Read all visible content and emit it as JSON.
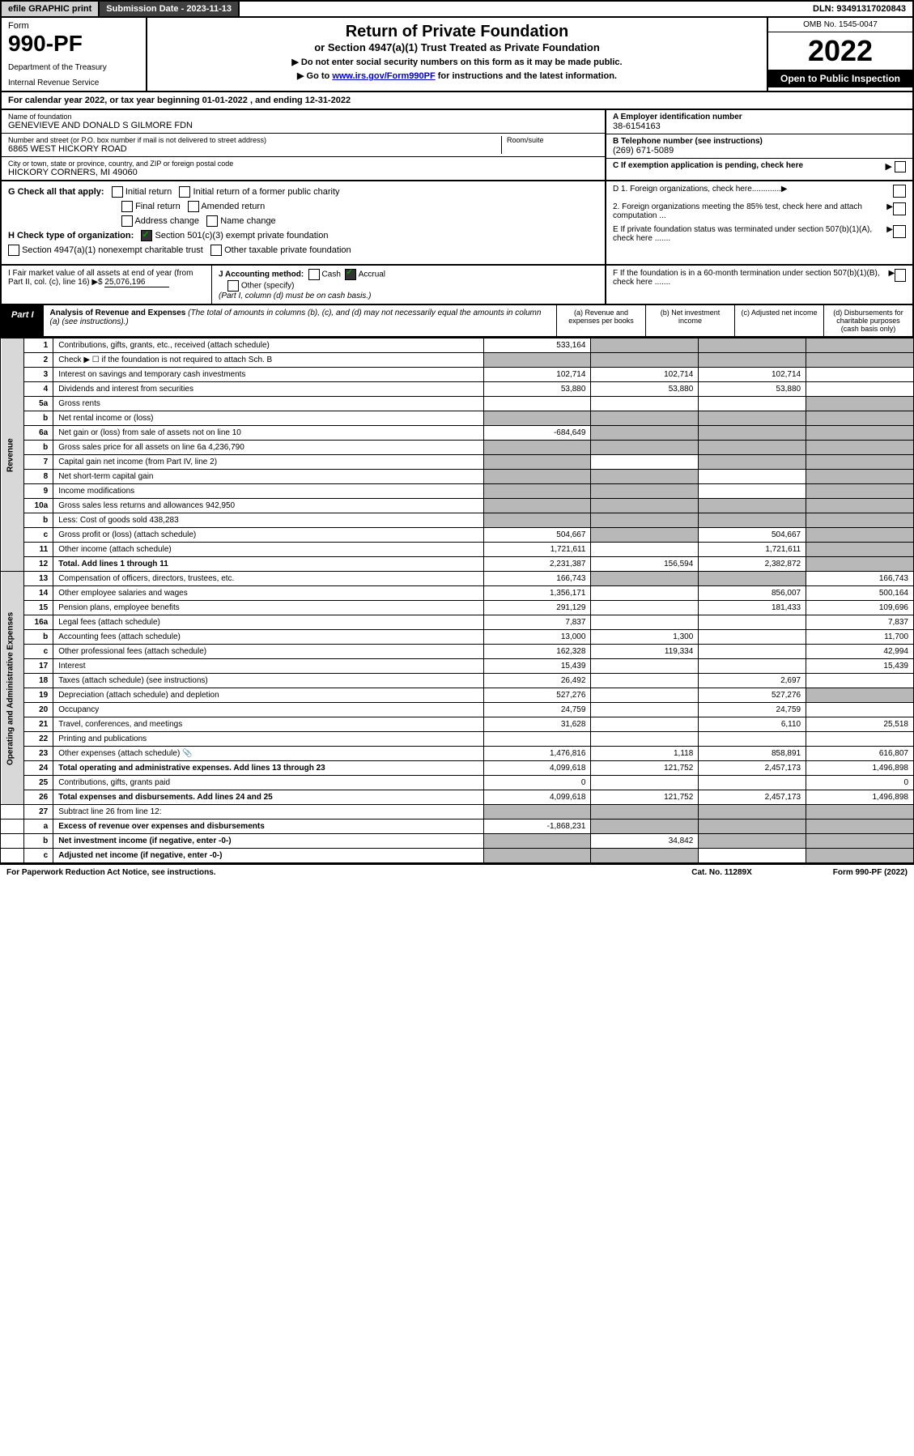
{
  "topbar": {
    "efile": "efile GRAPHIC print",
    "sub_label": "Submission Date - 2023-11-13",
    "dln": "DLN: 93491317020843"
  },
  "header": {
    "form_label": "Form",
    "form_number": "990-PF",
    "dept": "Department of the Treasury",
    "irs": "Internal Revenue Service",
    "title": "Return of Private Foundation",
    "subtitle": "or Section 4947(a)(1) Trust Treated as Private Foundation",
    "instr1": "▶ Do not enter social security numbers on this form as it may be made public.",
    "instr2_pre": "▶ Go to ",
    "instr2_link": "www.irs.gov/Form990PF",
    "instr2_post": " for instructions and the latest information.",
    "omb": "OMB No. 1545-0047",
    "year": "2022",
    "open": "Open to Public Inspection"
  },
  "calyear": "For calendar year 2022, or tax year beginning 01-01-2022           , and ending 12-31-2022",
  "name_block": {
    "name_label": "Name of foundation",
    "name": "GENEVIEVE AND DONALD S GILMORE FDN",
    "street_label": "Number and street (or P.O. box number if mail is not delivered to street address)",
    "room_label": "Room/suite",
    "street": "6865 WEST HICKORY ROAD",
    "city_label": "City or town, state or province, country, and ZIP or foreign postal code",
    "city": "HICKORY CORNERS, MI  49060",
    "ein_label": "A Employer identification number",
    "ein": "38-6154163",
    "phone_label": "B Telephone number (see instructions)",
    "phone": "(269) 671-5089",
    "c_label": "C If exemption application is pending, check here"
  },
  "checks": {
    "g_label": "G Check all that apply:",
    "g_opts": [
      "Initial return",
      "Initial return of a former public charity",
      "Final return",
      "Amended return",
      "Address change",
      "Name change"
    ],
    "h_label": "H Check type of organization:",
    "h_501c3": "Section 501(c)(3) exempt private foundation",
    "h_4947": "Section 4947(a)(1) nonexempt charitable trust",
    "h_other": "Other taxable private foundation",
    "d1": "D 1. Foreign organizations, check here.............",
    "d2": "2. Foreign organizations meeting the 85% test, check here and attach computation ...",
    "e": "E  If private foundation status was terminated under section 507(b)(1)(A), check here .......",
    "f": "F  If the foundation is in a 60-month termination under section 507(b)(1)(B), check here ......."
  },
  "hij": {
    "i_label": "I Fair market value of all assets at end of year (from Part II, col. (c), line 16) ▶$",
    "i_val": "25,076,196",
    "j_label": "J Accounting method:",
    "j_cash": "Cash",
    "j_accrual": "Accrual",
    "j_other": "Other (specify)",
    "j_note": "(Part I, column (d) must be on cash basis.)"
  },
  "part1": {
    "label": "Part I",
    "title": "Analysis of Revenue and Expenses",
    "note": "(The total of amounts in columns (b), (c), and (d) may not necessarily equal the amounts in column (a) (see instructions).)",
    "col_a": "(a)  Revenue and expenses per books",
    "col_b": "(b)  Net investment income",
    "col_c": "(c)  Adjusted net income",
    "col_d": "(d)  Disbursements for charitable purposes (cash basis only)"
  },
  "side_labels": {
    "rev": "Revenue",
    "ops": "Operating and Administrative Expenses"
  },
  "rows": {
    "r1": {
      "ln": "1",
      "desc": "Contributions, gifts, grants, etc., received (attach schedule)",
      "a": "533,164"
    },
    "r2": {
      "ln": "2",
      "desc": "Check ▶ ☐ if the foundation is not required to attach Sch. B"
    },
    "r3": {
      "ln": "3",
      "desc": "Interest on savings and temporary cash investments",
      "a": "102,714",
      "b": "102,714",
      "c": "102,714"
    },
    "r4": {
      "ln": "4",
      "desc": "Dividends and interest from securities",
      "a": "53,880",
      "b": "53,880",
      "c": "53,880"
    },
    "r5a": {
      "ln": "5a",
      "desc": "Gross rents"
    },
    "r5b": {
      "ln": "b",
      "desc": "Net rental income or (loss)"
    },
    "r6a": {
      "ln": "6a",
      "desc": "Net gain or (loss) from sale of assets not on line 10",
      "a": "-684,649"
    },
    "r6b": {
      "ln": "b",
      "desc": "Gross sales price for all assets on line 6a",
      "sub": "4,236,790"
    },
    "r7": {
      "ln": "7",
      "desc": "Capital gain net income (from Part IV, line 2)"
    },
    "r8": {
      "ln": "8",
      "desc": "Net short-term capital gain"
    },
    "r9": {
      "ln": "9",
      "desc": "Income modifications"
    },
    "r10a": {
      "ln": "10a",
      "desc": "Gross sales less returns and allowances",
      "sub": "942,950"
    },
    "r10b": {
      "ln": "b",
      "desc": "Less: Cost of goods sold",
      "sub": "438,283"
    },
    "r10c": {
      "ln": "c",
      "desc": "Gross profit or (loss) (attach schedule)",
      "a": "504,667",
      "c": "504,667"
    },
    "r11": {
      "ln": "11",
      "desc": "Other income (attach schedule)",
      "a": "1,721,611",
      "c": "1,721,611"
    },
    "r12": {
      "ln": "12",
      "desc": "Total. Add lines 1 through 11",
      "a": "2,231,387",
      "b": "156,594",
      "c": "2,382,872",
      "bold": true
    },
    "r13": {
      "ln": "13",
      "desc": "Compensation of officers, directors, trustees, etc.",
      "a": "166,743",
      "d": "166,743"
    },
    "r14": {
      "ln": "14",
      "desc": "Other employee salaries and wages",
      "a": "1,356,171",
      "c": "856,007",
      "d": "500,164"
    },
    "r15": {
      "ln": "15",
      "desc": "Pension plans, employee benefits",
      "a": "291,129",
      "c": "181,433",
      "d": "109,696"
    },
    "r16a": {
      "ln": "16a",
      "desc": "Legal fees (attach schedule)",
      "a": "7,837",
      "d": "7,837"
    },
    "r16b": {
      "ln": "b",
      "desc": "Accounting fees (attach schedule)",
      "a": "13,000",
      "b": "1,300",
      "d": "11,700"
    },
    "r16c": {
      "ln": "c",
      "desc": "Other professional fees (attach schedule)",
      "a": "162,328",
      "b": "119,334",
      "d": "42,994"
    },
    "r17": {
      "ln": "17",
      "desc": "Interest",
      "a": "15,439",
      "d": "15,439"
    },
    "r18": {
      "ln": "18",
      "desc": "Taxes (attach schedule) (see instructions)",
      "a": "26,492",
      "c": "2,697"
    },
    "r19": {
      "ln": "19",
      "desc": "Depreciation (attach schedule) and depletion",
      "a": "527,276",
      "c": "527,276"
    },
    "r20": {
      "ln": "20",
      "desc": "Occupancy",
      "a": "24,759",
      "c": "24,759"
    },
    "r21": {
      "ln": "21",
      "desc": "Travel, conferences, and meetings",
      "a": "31,628",
      "c": "6,110",
      "d": "25,518"
    },
    "r22": {
      "ln": "22",
      "desc": "Printing and publications"
    },
    "r23": {
      "ln": "23",
      "desc": "Other expenses (attach schedule)",
      "icon": "📎",
      "a": "1,476,816",
      "b": "1,118",
      "c": "858,891",
      "d": "616,807"
    },
    "r24": {
      "ln": "24",
      "desc": "Total operating and administrative expenses. Add lines 13 through 23",
      "a": "4,099,618",
      "b": "121,752",
      "c": "2,457,173",
      "d": "1,496,898",
      "bold": true
    },
    "r25": {
      "ln": "25",
      "desc": "Contributions, gifts, grants paid",
      "a": "0",
      "d": "0"
    },
    "r26": {
      "ln": "26",
      "desc": "Total expenses and disbursements. Add lines 24 and 25",
      "a": "4,099,618",
      "b": "121,752",
      "c": "2,457,173",
      "d": "1,496,898",
      "bold": true
    },
    "r27": {
      "ln": "27",
      "desc": "Subtract line 26 from line 12:"
    },
    "r27a": {
      "ln": "a",
      "desc": "Excess of revenue over expenses and disbursements",
      "a": "-1,868,231",
      "bold": true
    },
    "r27b": {
      "ln": "b",
      "desc": "Net investment income (if negative, enter -0-)",
      "b": "34,842",
      "bold": true
    },
    "r27c": {
      "ln": "c",
      "desc": "Adjusted net income (if negative, enter -0-)",
      "bold": true
    }
  },
  "footer": {
    "left": "For Paperwork Reduction Act Notice, see instructions.",
    "mid": "Cat. No. 11289X",
    "right": "Form 990-PF (2022)"
  }
}
